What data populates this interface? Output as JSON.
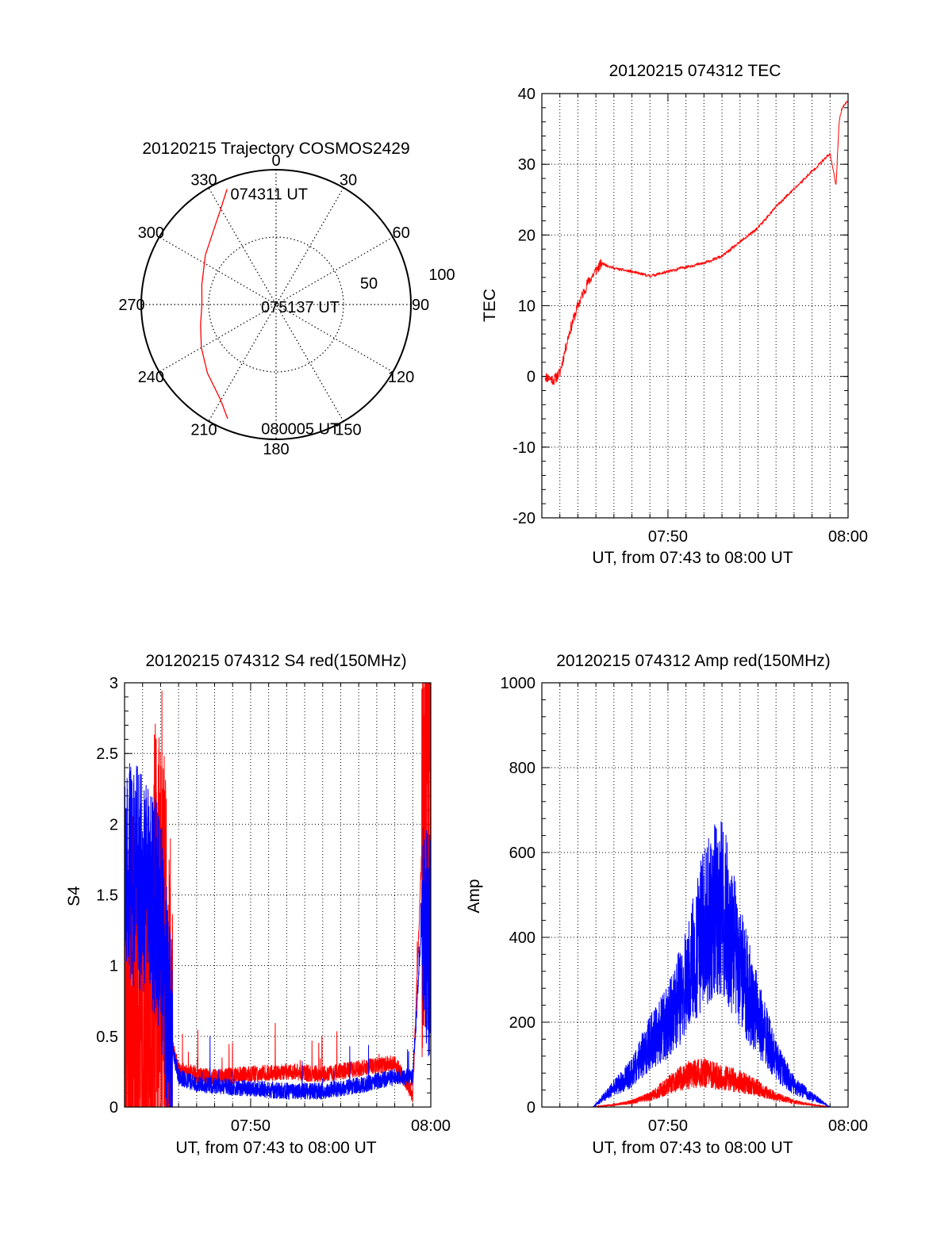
{
  "chart_data": [
    {
      "type": "polar",
      "title": "20120215 Trajectory COSMOS2429",
      "angle_labels": [
        "0",
        "30",
        "60",
        "90",
        "120",
        "150",
        "180",
        "210",
        "240",
        "270",
        "300",
        "330"
      ],
      "radial_labels": [
        "50",
        "100"
      ],
      "rlim": [
        0,
        100
      ],
      "grid": true,
      "series": [
        {
          "color": "#ff0000",
          "points": [
            [
              337,
              93
            ],
            [
              330,
              82
            ],
            [
              320,
              72
            ],
            [
              305,
              64
            ],
            [
              285,
              57
            ],
            [
              270,
              55
            ],
            [
              255,
              58
            ],
            [
              240,
              64
            ],
            [
              225,
              72
            ],
            [
              210,
              82
            ],
            [
              203,
              92
            ]
          ]
        }
      ],
      "annotations": [
        {
          "text": "074311 UT",
          "az": 343,
          "r": 90
        },
        {
          "text": "075137 UT",
          "az": 305,
          "r": 4
        },
        {
          "text": "080005 UT",
          "az": 182,
          "r": 88
        }
      ]
    },
    {
      "type": "line",
      "title": "20120215 074312 TEC",
      "xlabel": "UT, from 07:43 to 08:00 UT",
      "ylabel": "TEC",
      "xlim": [
        "07:43",
        "08:00"
      ],
      "ylim": [
        -20,
        40
      ],
      "yticks": [
        "-20",
        "-10",
        "0",
        "10",
        "20",
        "30",
        "40"
      ],
      "xticks": [
        "07:50",
        "08:00"
      ],
      "grid": true,
      "series": [
        {
          "color": "#ff0000",
          "x": [
            "07:43:10",
            "07:43:40",
            "07:44:00",
            "07:44:30",
            "07:45:00",
            "07:45:30",
            "07:46:00",
            "07:46:20",
            "07:47:00",
            "07:48:00",
            "07:49:00",
            "07:50:00",
            "07:51:00",
            "07:52:00",
            "07:53:00",
            "07:54:00",
            "07:55:00",
            "07:56:00",
            "07:57:00",
            "07:58:00",
            "07:59:00",
            "07:59:20",
            "07:59:30",
            "07:59:40",
            "08:00:00"
          ],
          "y": [
            0,
            -0.5,
            0.5,
            6,
            10,
            13,
            15,
            16,
            15.3,
            14.8,
            14.2,
            14.8,
            15.5,
            16,
            17,
            19,
            21,
            24,
            26.5,
            29,
            31.5,
            27,
            36,
            38,
            39
          ]
        }
      ]
    },
    {
      "type": "line",
      "title": "20120215 074312 S4 red(150MHz)",
      "xlabel": "UT, from 07:43 to 08:00 UT",
      "ylabel": "S4",
      "xlim": [
        "07:43",
        "08:00"
      ],
      "ylim": [
        0,
        3
      ],
      "yticks": [
        "0",
        "0.5",
        "1",
        "1.5",
        "2",
        "2.5",
        "3"
      ],
      "xticks": [
        "07:50",
        "08:00"
      ],
      "grid": true,
      "series": [
        {
          "color": "#ff0000",
          "x": [
            "07:43:00",
            "07:44:00",
            "07:45:00",
            "07:45:30",
            "07:46:00",
            "07:47:00",
            "07:48:00",
            "07:50:00",
            "07:52:00",
            "07:54:00",
            "07:56:00",
            "07:57:00",
            "07:58:00",
            "07:59:00",
            "07:59:30",
            "08:00:00"
          ],
          "y": [
            0.6,
            0.3,
            1.5,
            0.5,
            0.25,
            0.22,
            0.2,
            0.22,
            0.24,
            0.22,
            0.26,
            0.28,
            0.3,
            0.08,
            1.8,
            2.8
          ]
        },
        {
          "color": "#0000ff",
          "x": [
            "07:43:00",
            "07:44:00",
            "07:45:00",
            "07:45:30",
            "07:46:00",
            "07:47:00",
            "07:48:00",
            "07:50:00",
            "07:52:00",
            "07:54:00",
            "07:56:00",
            "07:57:00",
            "07:58:00",
            "07:59:00",
            "07:59:30",
            "08:00:00"
          ],
          "y": [
            1.7,
            1.6,
            1.3,
            0.5,
            0.2,
            0.15,
            0.14,
            0.12,
            0.1,
            0.1,
            0.14,
            0.17,
            0.2,
            0.2,
            1.3,
            1.1
          ]
        }
      ]
    },
    {
      "type": "line",
      "title": "20120215 074312 Amp red(150MHz)",
      "xlabel": "UT, from 07:43 to 08:00 UT",
      "ylabel": "Amp",
      "xlim": [
        "07:43",
        "08:00"
      ],
      "ylim": [
        0,
        1000
      ],
      "yticks": [
        "0",
        "200",
        "400",
        "600",
        "800",
        "1000"
      ],
      "xticks": [
        "07:50",
        "08:00"
      ],
      "grid": true,
      "series": [
        {
          "color": "#ff0000",
          "x": [
            "07:43:00",
            "07:45:50",
            "07:47:00",
            "07:48:00",
            "07:49:00",
            "07:50:00",
            "07:51:00",
            "07:52:00",
            "07:53:00",
            "07:54:00",
            "07:55:00",
            "07:56:00",
            "07:57:00",
            "07:58:00",
            "07:59:00"
          ],
          "y": [
            0,
            0,
            5,
            12,
            25,
            50,
            75,
            80,
            70,
            60,
            45,
            25,
            12,
            5,
            0
          ]
        },
        {
          "color": "#0000ff",
          "x": [
            "07:43:00",
            "07:45:50",
            "07:47:00",
            "07:48:00",
            "07:49:00",
            "07:50:00",
            "07:51:00",
            "07:52:00",
            "07:53:00",
            "07:54:00",
            "07:55:00",
            "07:56:00",
            "07:57:00",
            "07:58:00",
            "07:59:00",
            "08:00:00"
          ],
          "y": [
            0,
            0,
            45,
            80,
            150,
            200,
            290,
            430,
            480,
            330,
            210,
            110,
            50,
            25,
            0,
            0
          ]
        }
      ]
    }
  ]
}
